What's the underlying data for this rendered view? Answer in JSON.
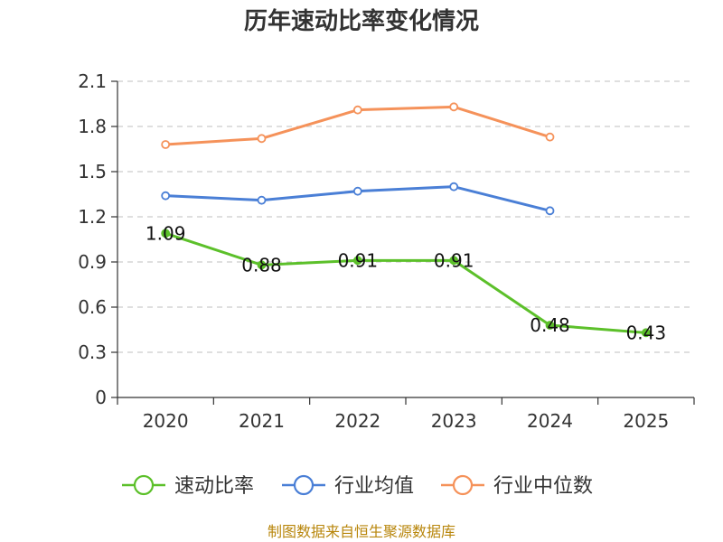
{
  "chart_data": {
    "type": "line",
    "title": "历年速动比率变化情况",
    "xlabel": "",
    "ylabel": "",
    "categories": [
      "2020",
      "2021",
      "2022",
      "2023",
      "2024",
      "2025"
    ],
    "y_ticks": [
      "0",
      "0.3",
      "0.6",
      "0.9",
      "1.2",
      "1.5",
      "1.8",
      "2.1"
    ],
    "ylim": [
      0,
      2.1
    ],
    "grid": true,
    "legend_position": "bottom",
    "series": [
      {
        "name": "速动比率",
        "color": "#5cc02a",
        "values": [
          1.09,
          0.88,
          0.91,
          0.91,
          0.48,
          0.43
        ],
        "labels": [
          "1.09",
          "0.88",
          "0.91",
          "0.91",
          "0.48",
          "0.43"
        ],
        "markers_filled": true
      },
      {
        "name": "行业均值",
        "color": "#4a7fd6",
        "values": [
          1.34,
          1.31,
          1.37,
          1.4,
          1.24,
          null
        ],
        "markers_filled": false
      },
      {
        "name": "行业中位数",
        "color": "#f5925a",
        "values": [
          1.68,
          1.72,
          1.91,
          1.93,
          1.73,
          null
        ],
        "markers_filled": false
      }
    ],
    "source": "制图数据来自恒生聚源数据库"
  }
}
